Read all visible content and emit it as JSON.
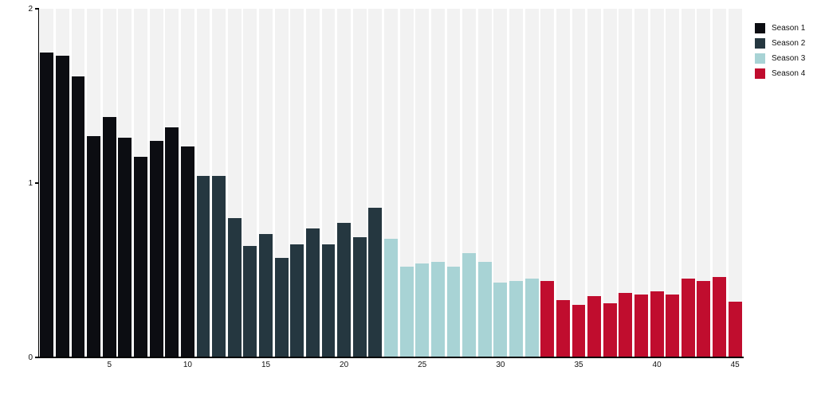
{
  "chart_data": {
    "type": "bar",
    "title": "",
    "xlabel": "",
    "ylabel": "",
    "ylim": [
      0,
      2
    ],
    "yticks": [
      0,
      1,
      2
    ],
    "xticks": [
      5,
      10,
      15,
      20,
      25,
      30,
      35,
      40,
      45
    ],
    "grid": false,
    "legend_position": "top-right",
    "background_column_color": "#f2f2f2",
    "axis_color": "#000000",
    "x": [
      1,
      2,
      3,
      4,
      5,
      6,
      7,
      8,
      9,
      10,
      11,
      12,
      13,
      14,
      15,
      16,
      17,
      18,
      19,
      20,
      21,
      22,
      23,
      24,
      25,
      26,
      27,
      28,
      29,
      30,
      31,
      32,
      33,
      34,
      35,
      36,
      37,
      38,
      39,
      40,
      41,
      42,
      43,
      44,
      45
    ],
    "values": [
      1.75,
      1.73,
      1.61,
      1.27,
      1.38,
      1.26,
      1.15,
      1.24,
      1.32,
      1.21,
      1.04,
      1.04,
      0.8,
      0.64,
      0.71,
      0.57,
      0.65,
      0.74,
      0.65,
      0.77,
      0.69,
      0.86,
      0.68,
      0.52,
      0.54,
      0.55,
      0.52,
      0.6,
      0.55,
      0.43,
      0.44,
      0.45,
      0.44,
      0.33,
      0.3,
      0.35,
      0.31,
      0.37,
      0.36,
      0.38,
      0.36,
      0.45,
      0.44,
      0.46,
      0.32
    ],
    "seasons": [
      {
        "name": "Season 1",
        "color": "#0c0d12",
        "from": 1,
        "to": 10
      },
      {
        "name": "Season 2",
        "color": "#253740",
        "from": 11,
        "to": 22
      },
      {
        "name": "Season 3",
        "color": "#a8d3d5",
        "from": 23,
        "to": 32
      },
      {
        "name": "Season 4",
        "color": "#c00d2e",
        "from": 33,
        "to": 45
      }
    ],
    "legend_items": [
      "Season 1",
      "Season 2",
      "Season 3",
      "Season 4"
    ]
  }
}
